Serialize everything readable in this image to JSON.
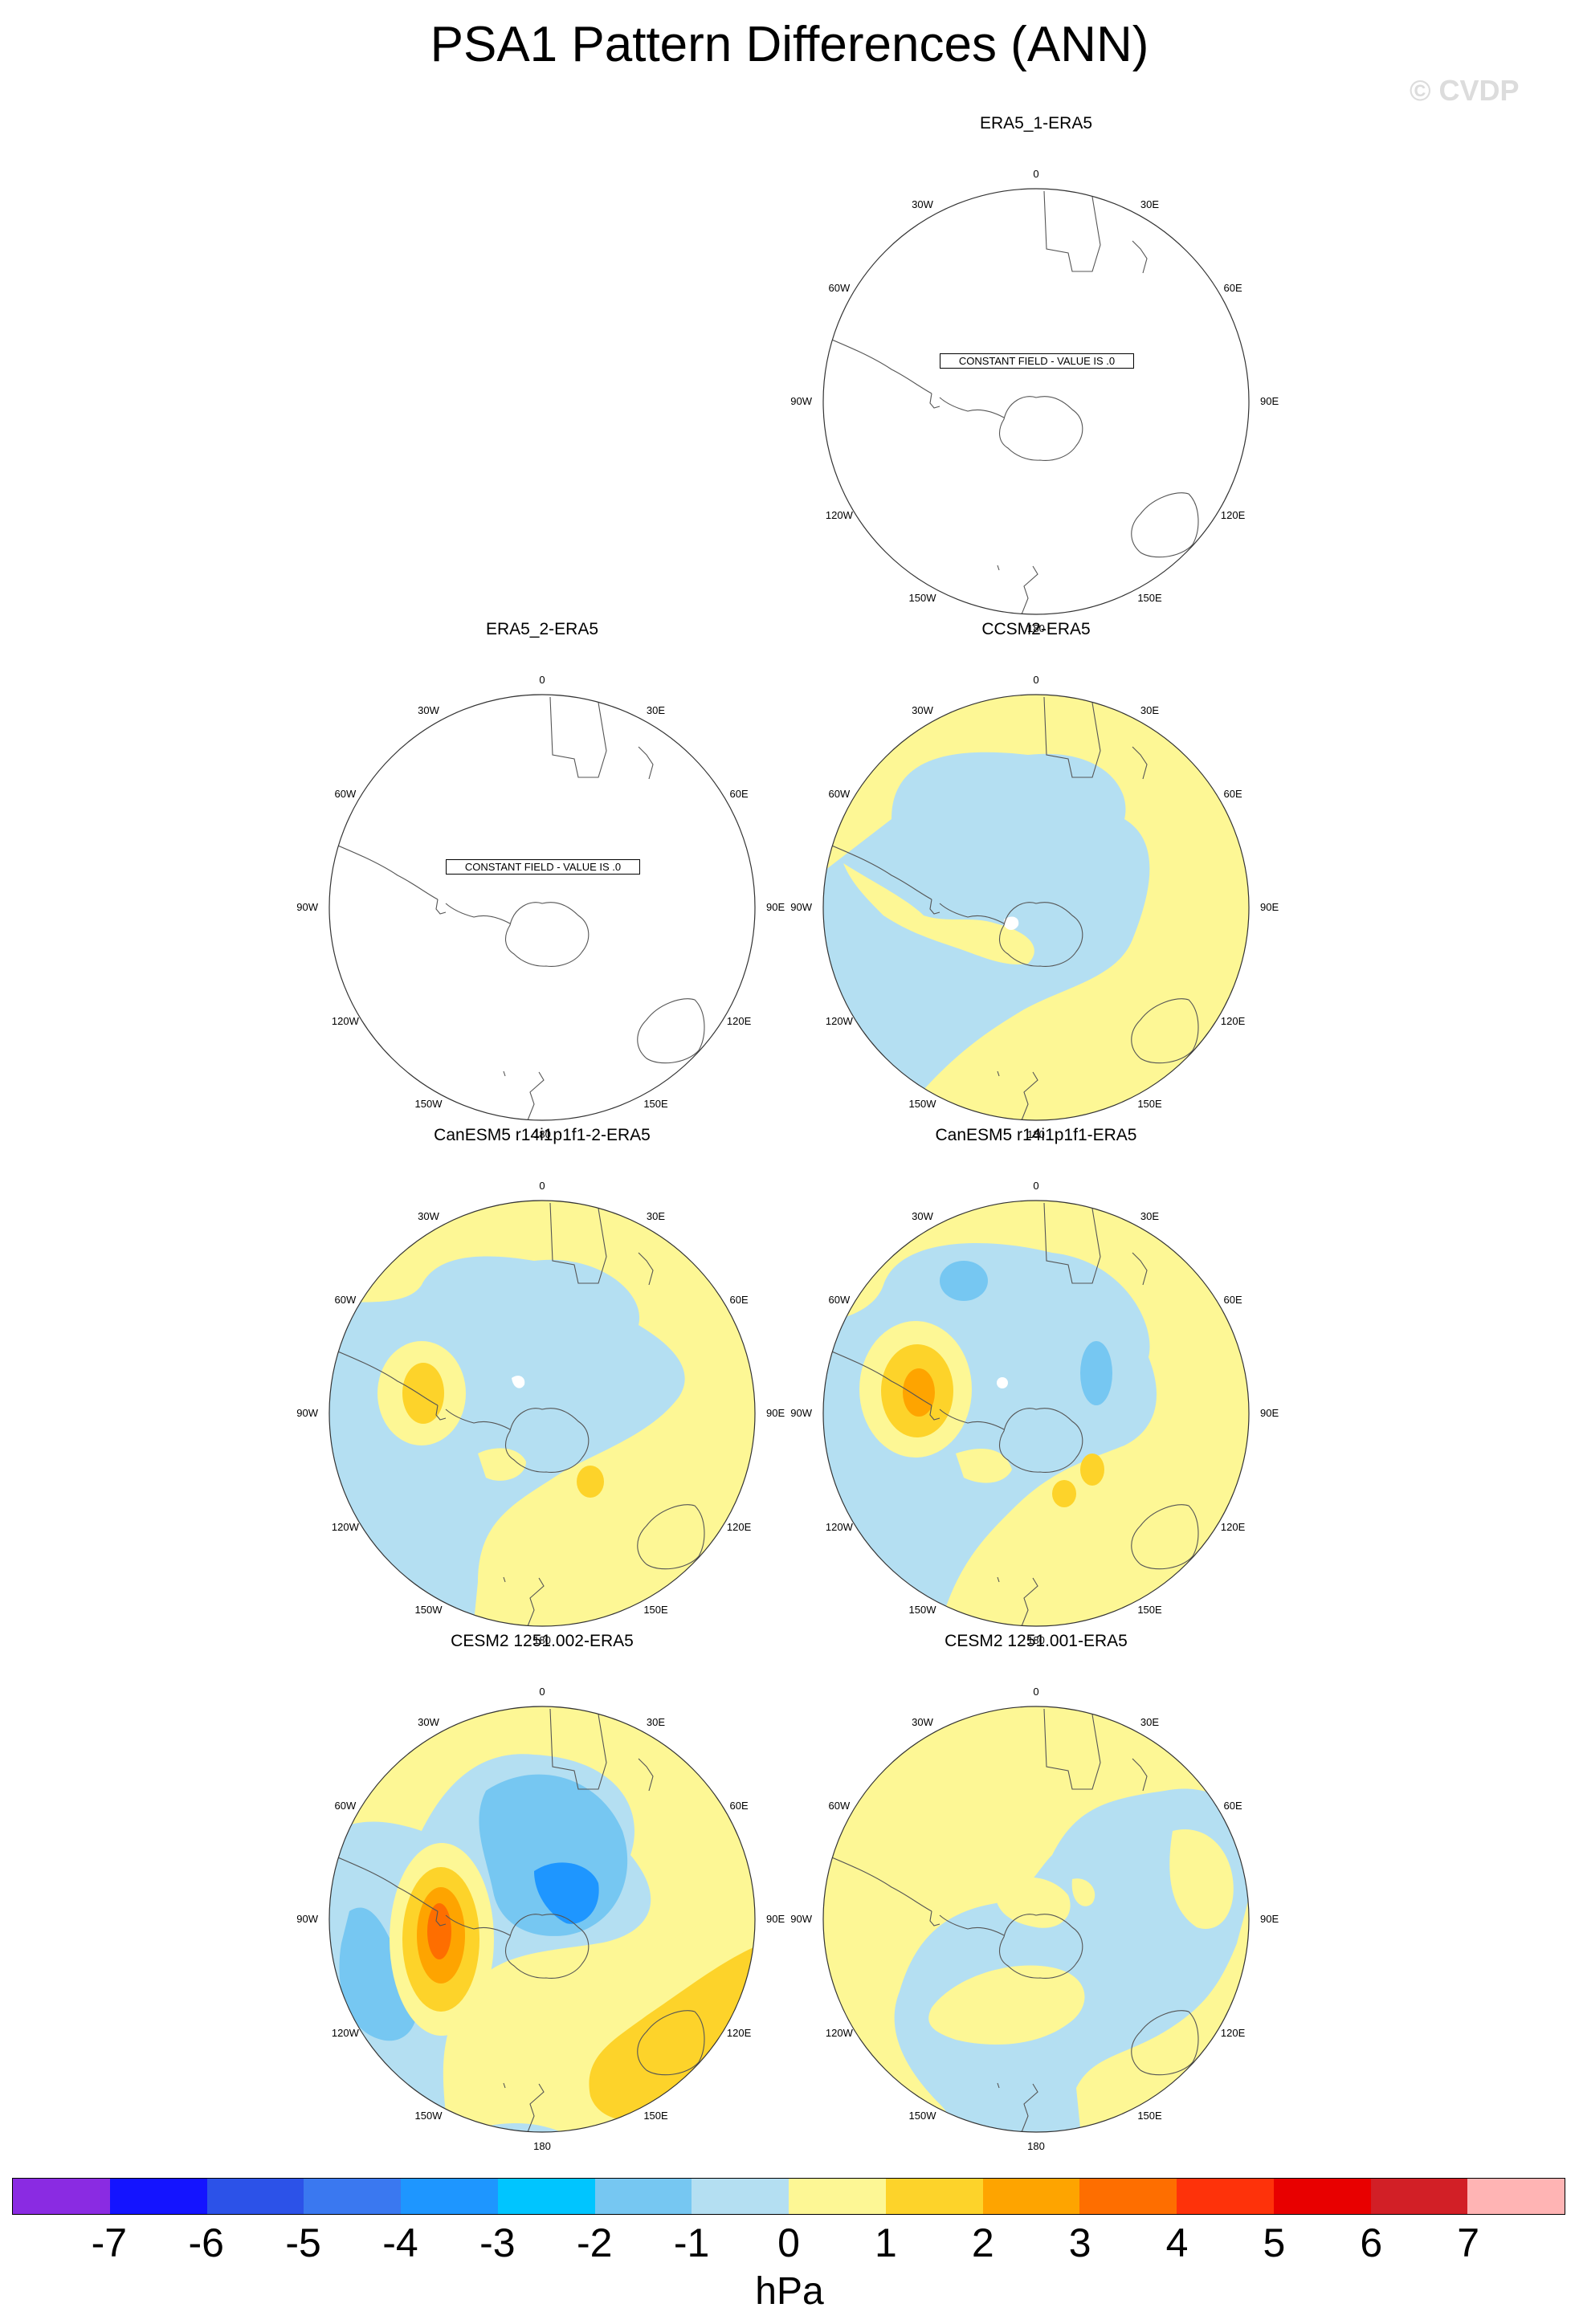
{
  "title": "PSA1 Pattern Differences (ANN)",
  "watermark": "© CVDP",
  "constant_field_text": "CONSTANT FIELD - VALUE IS .0",
  "lon_labels": [
    "0",
    "30E",
    "60E",
    "90E",
    "120E",
    "150E",
    "180",
    "150W",
    "120W",
    "90W",
    "60W",
    "30W"
  ],
  "colorbar": {
    "unit": "hPa",
    "ticks": [
      "-7",
      "-6",
      "-5",
      "-4",
      "-3",
      "-2",
      "-1",
      "0",
      "1",
      "2",
      "3",
      "4",
      "5",
      "6",
      "7"
    ],
    "colors": [
      "#8a2be2",
      "#1414ff",
      "#2c52e8",
      "#3a78f0",
      "#1e96ff",
      "#00c5ff",
      "#76c7f2",
      "#b4dff2",
      "#fdf795",
      "#fdd32a",
      "#fea400",
      "#fe6e00",
      "#fe320a",
      "#e80000",
      "#d21f26",
      "#ffb4b4"
    ]
  },
  "panels": [
    {
      "title": "ERA5_1-ERA5",
      "constant": true,
      "field": "none"
    },
    {
      "title": "ERA5_2-ERA5",
      "constant": true,
      "field": "none"
    },
    {
      "title": "CCSM2-ERA5",
      "constant": false,
      "field": "ccsm2"
    },
    {
      "title": "CanESM5 r14i1p1f1-2-ERA5",
      "constant": false,
      "field": "canesm_a"
    },
    {
      "title": "CanESM5 r14i1p1f1-ERA5",
      "constant": false,
      "field": "canesm_b"
    },
    {
      "title": "CESM2 1251.002-ERA5",
      "constant": false,
      "field": "cesm_a"
    },
    {
      "title": "CESM2 1251.001-ERA5",
      "constant": false,
      "field": "cesm_b"
    }
  ]
}
